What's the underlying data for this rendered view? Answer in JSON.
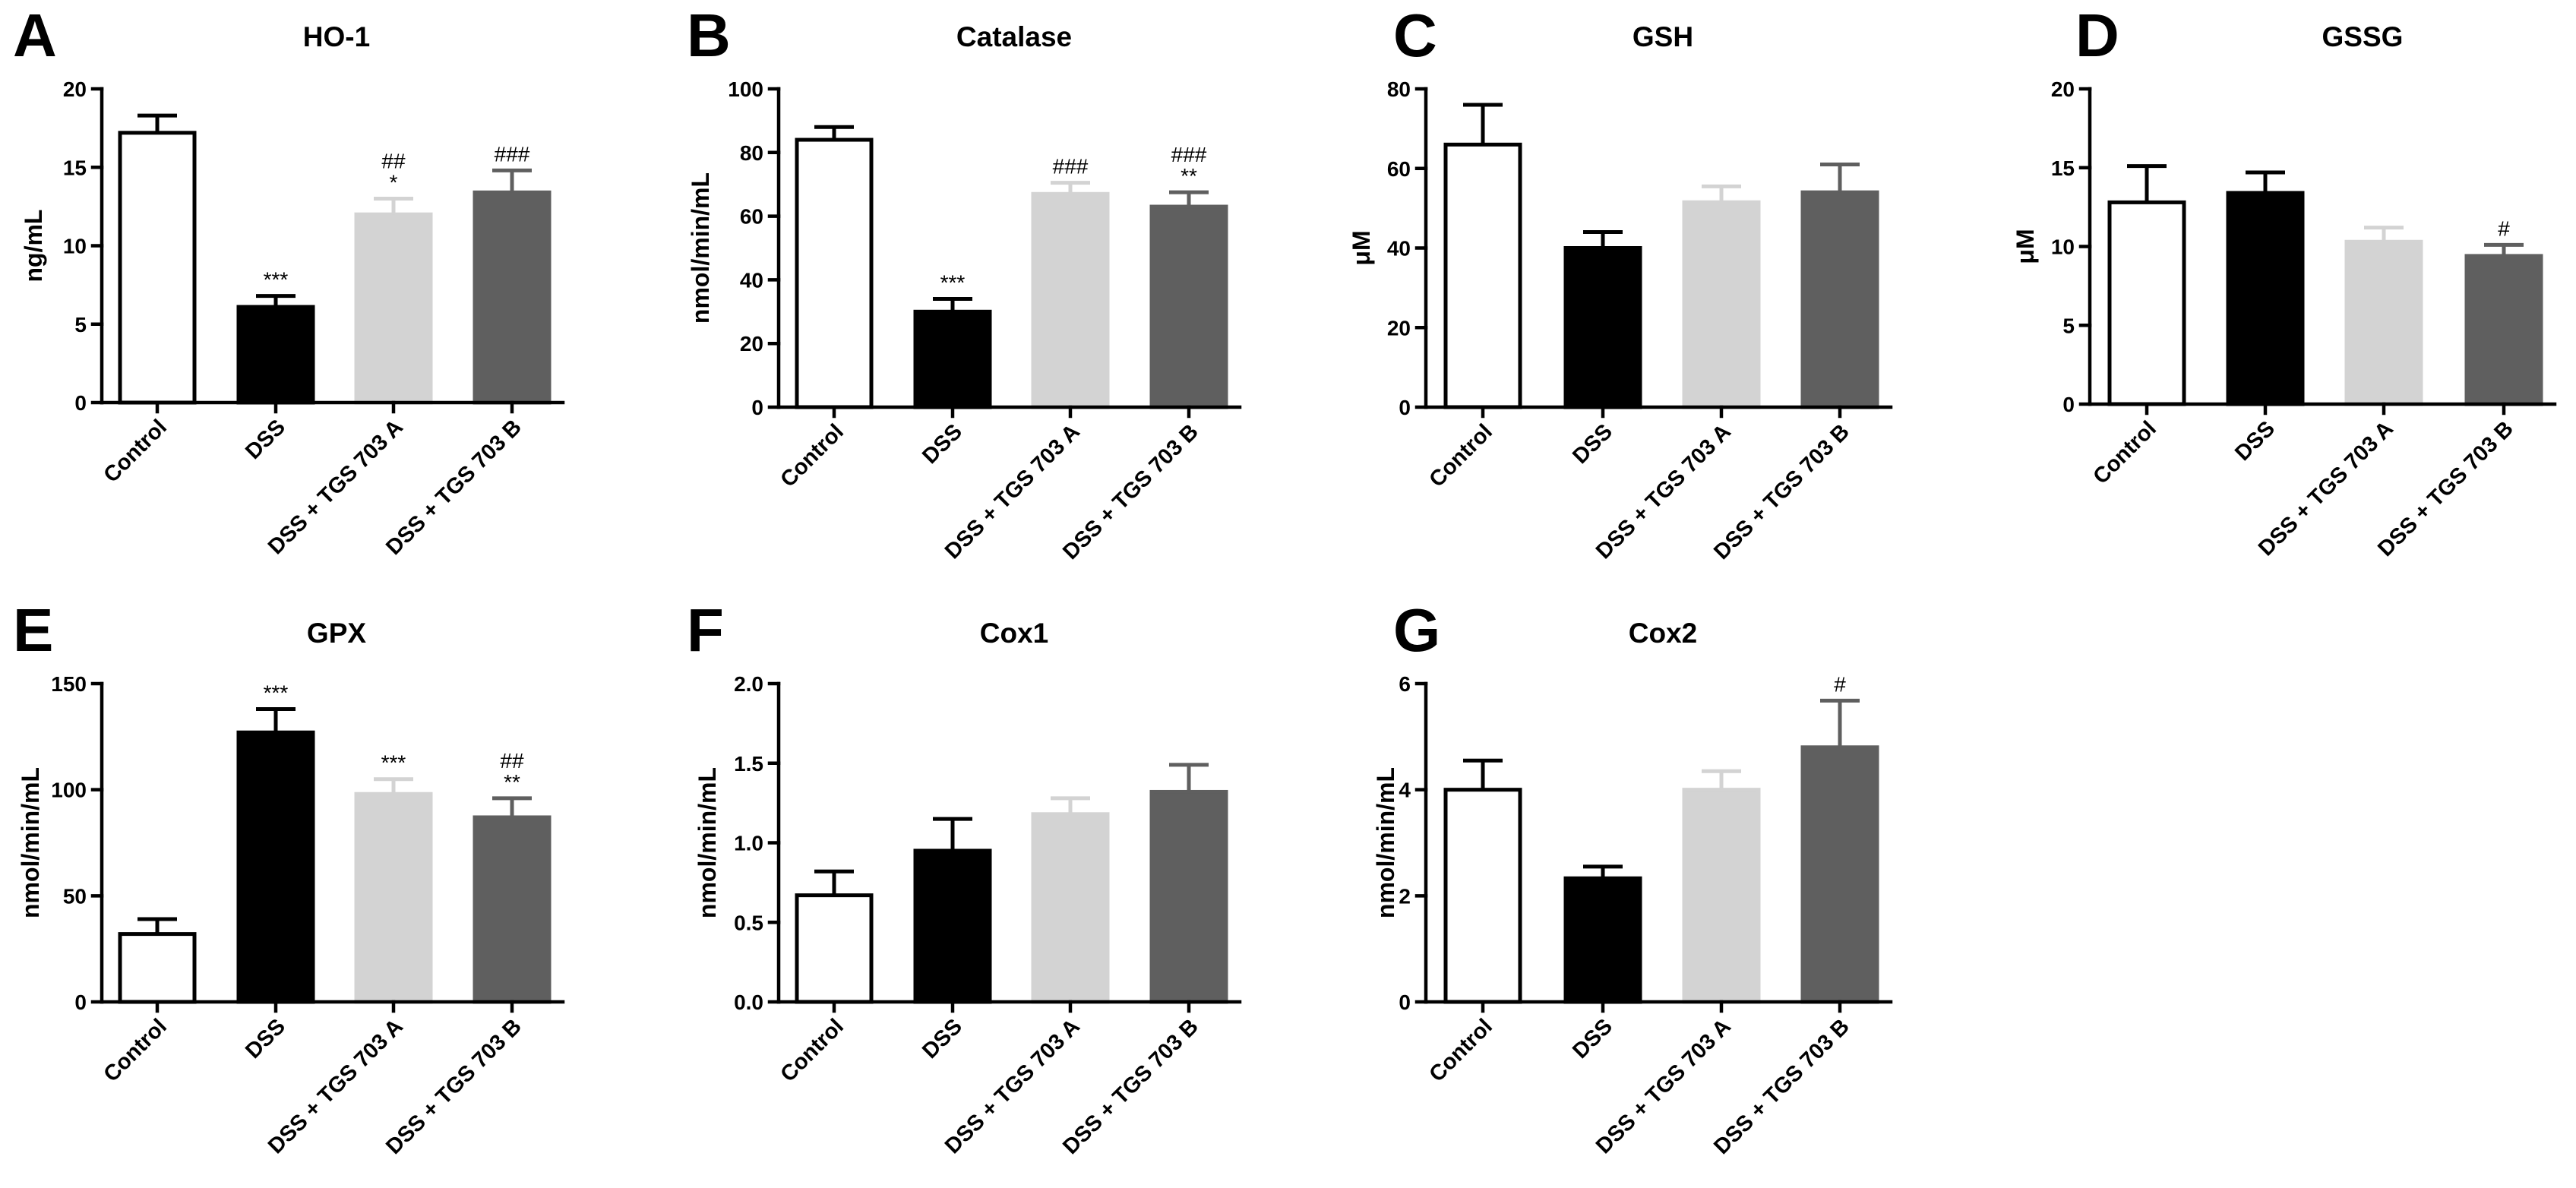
{
  "palette": {
    "fill": [
      "#ffffff",
      "#000000",
      "#d3d3d3",
      "#5f5f5f"
    ],
    "edge": [
      "#000000",
      "#000000",
      "#d3d3d3",
      "#5f5f5f"
    ]
  },
  "chart_data": [
    {
      "panel": "A",
      "type": "bar",
      "title": "HO-1",
      "ylabel": "ng/mL",
      "ylim": [
        0,
        20
      ],
      "yticks": [
        "0",
        "5",
        "10",
        "15",
        "20"
      ],
      "categories": [
        "Control",
        "DSS",
        "DSS + TGS 703 A",
        "DSS + TGS 703 B"
      ],
      "values": [
        17.2,
        6.1,
        12.0,
        13.4
      ],
      "errors": [
        1.1,
        0.7,
        1.0,
        1.4
      ],
      "annotations": [
        [],
        [
          "***"
        ],
        [
          "*",
          "##"
        ],
        [
          "###"
        ]
      ]
    },
    {
      "panel": "B",
      "type": "bar",
      "title": "Catalase",
      "ylabel": "nmol/min/mL",
      "ylim": [
        0,
        100
      ],
      "yticks": [
        "0",
        "20",
        "40",
        "60",
        "80",
        "100"
      ],
      "categories": [
        "Control",
        "DSS",
        "DSS + TGS 703 A",
        "DSS + TGS 703 B"
      ],
      "values": [
        84,
        30,
        67,
        63
      ],
      "errors": [
        4,
        4,
        3.5,
        4.5
      ],
      "annotations": [
        [],
        [
          "***"
        ],
        [
          "###"
        ],
        [
          "**",
          "###"
        ]
      ]
    },
    {
      "panel": "C",
      "type": "bar",
      "title": "GSH",
      "ylabel": "μM",
      "ylim": [
        0,
        80
      ],
      "yticks": [
        "0",
        "20",
        "40",
        "60",
        "80"
      ],
      "categories": [
        "Control",
        "DSS",
        "DSS + TGS 703 A",
        "DSS + TGS 703 B"
      ],
      "values": [
        66,
        40,
        51.5,
        54
      ],
      "errors": [
        10,
        4,
        4,
        7
      ],
      "annotations": [
        [],
        [],
        [],
        []
      ]
    },
    {
      "panel": "D",
      "type": "bar",
      "title": "GSSG",
      "ylabel": "μM",
      "ylim": [
        0,
        20
      ],
      "yticks": [
        "0",
        "5",
        "10",
        "15",
        "20"
      ],
      "categories": [
        "Control",
        "DSS",
        "DSS + TGS 703 A",
        "DSS + TGS 703 B"
      ],
      "values": [
        12.8,
        13.4,
        10.3,
        9.4
      ],
      "errors": [
        2.3,
        1.3,
        0.9,
        0.7
      ],
      "annotations": [
        [],
        [],
        [],
        [
          "#"
        ]
      ]
    },
    {
      "panel": "E",
      "type": "bar",
      "title": "GPX",
      "ylabel": "nmol/min/mL",
      "ylim": [
        0,
        150
      ],
      "yticks": [
        "0",
        "50",
        "100",
        "150"
      ],
      "categories": [
        "Control",
        "DSS",
        "DSS + TGS 703 A",
        "DSS + TGS 703 B"
      ],
      "values": [
        32,
        127,
        98,
        87
      ],
      "errors": [
        7,
        11,
        7,
        9
      ],
      "annotations": [
        [],
        [
          "***"
        ],
        [
          "***"
        ],
        [
          "**",
          "##"
        ]
      ]
    },
    {
      "panel": "F",
      "type": "bar",
      "title": "Cox1",
      "ylabel": "nmol/min/mL",
      "ylim": [
        0,
        2
      ],
      "yticks": [
        "0.0",
        "0.5",
        "1.0",
        "1.5",
        "2.0"
      ],
      "categories": [
        "Control",
        "DSS",
        "DSS + TGS 703 A",
        "DSS + TGS 703 B"
      ],
      "values": [
        0.67,
        0.95,
        1.18,
        1.32
      ],
      "errors": [
        0.15,
        0.2,
        0.1,
        0.17
      ],
      "annotations": [
        [],
        [],
        [],
        []
      ]
    },
    {
      "panel": "G",
      "type": "bar",
      "title": "Cox2",
      "ylabel": "nmol/min/mL",
      "ylim": [
        0,
        6
      ],
      "yticks": [
        "0",
        "2",
        "4",
        "6"
      ],
      "categories": [
        "Control",
        "DSS",
        "DSS + TGS 703 A",
        "DSS + TGS 703 B"
      ],
      "values": [
        4.0,
        2.33,
        4.0,
        4.8
      ],
      "errors": [
        0.55,
        0.22,
        0.35,
        0.88
      ],
      "annotations": [
        [],
        [],
        [],
        [
          "#"
        ]
      ]
    }
  ]
}
